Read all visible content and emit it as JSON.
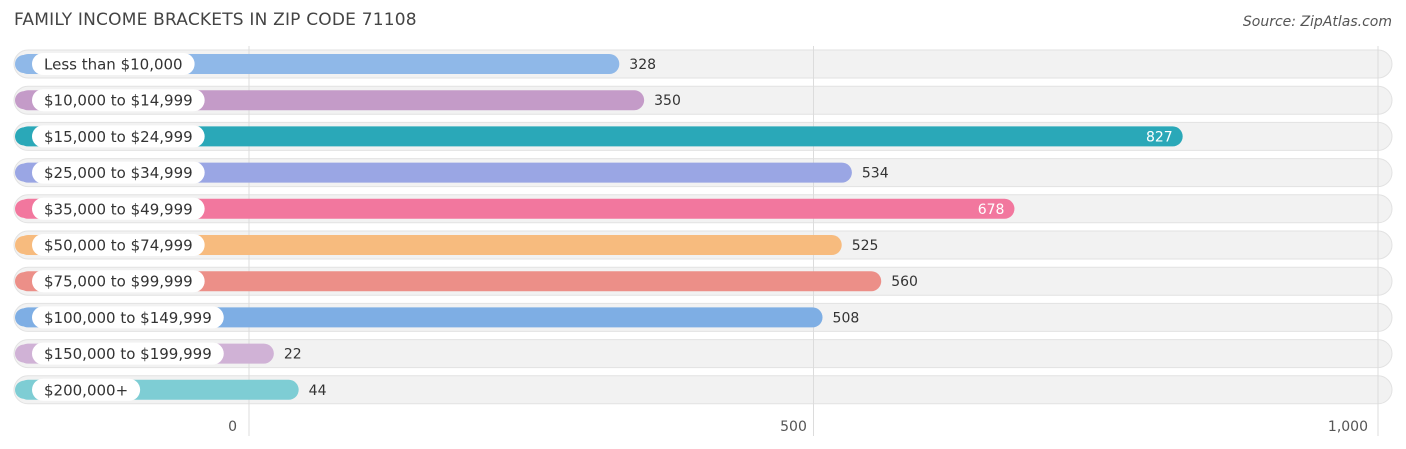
{
  "header": {
    "title": "FAMILY INCOME BRACKETS IN ZIP CODE 71108",
    "source": "Source: ZipAtlas.com"
  },
  "chart_data": {
    "type": "bar",
    "orientation": "horizontal",
    "title": "FAMILY INCOME BRACKETS IN ZIP CODE 71108",
    "xlim": [
      0,
      1000
    ],
    "ticks": [
      0,
      500,
      1000
    ],
    "tick_labels": [
      "0",
      "500",
      "1,000"
    ],
    "grid": true,
    "categories": [
      "Less than $10,000",
      "$10,000 to $14,999",
      "$15,000 to $24,999",
      "$25,000 to $34,999",
      "$35,000 to $49,999",
      "$50,000 to $74,999",
      "$75,000 to $99,999",
      "$100,000 to $149,999",
      "$150,000 to $199,999",
      "$200,000+"
    ],
    "values": [
      328,
      350,
      827,
      534,
      678,
      525,
      560,
      508,
      22,
      44
    ],
    "value_labels": [
      "328",
      "350",
      "827",
      "534",
      "678",
      "525",
      "560",
      "508",
      "22",
      "44"
    ],
    "colors": [
      "#8fb8e8",
      "#c49bc8",
      "#2aa8b8",
      "#9aa6e4",
      "#f2779e",
      "#f7bb7e",
      "#ec8f88",
      "#7eaee4",
      "#d0b2d6",
      "#7ecdd4"
    ]
  }
}
